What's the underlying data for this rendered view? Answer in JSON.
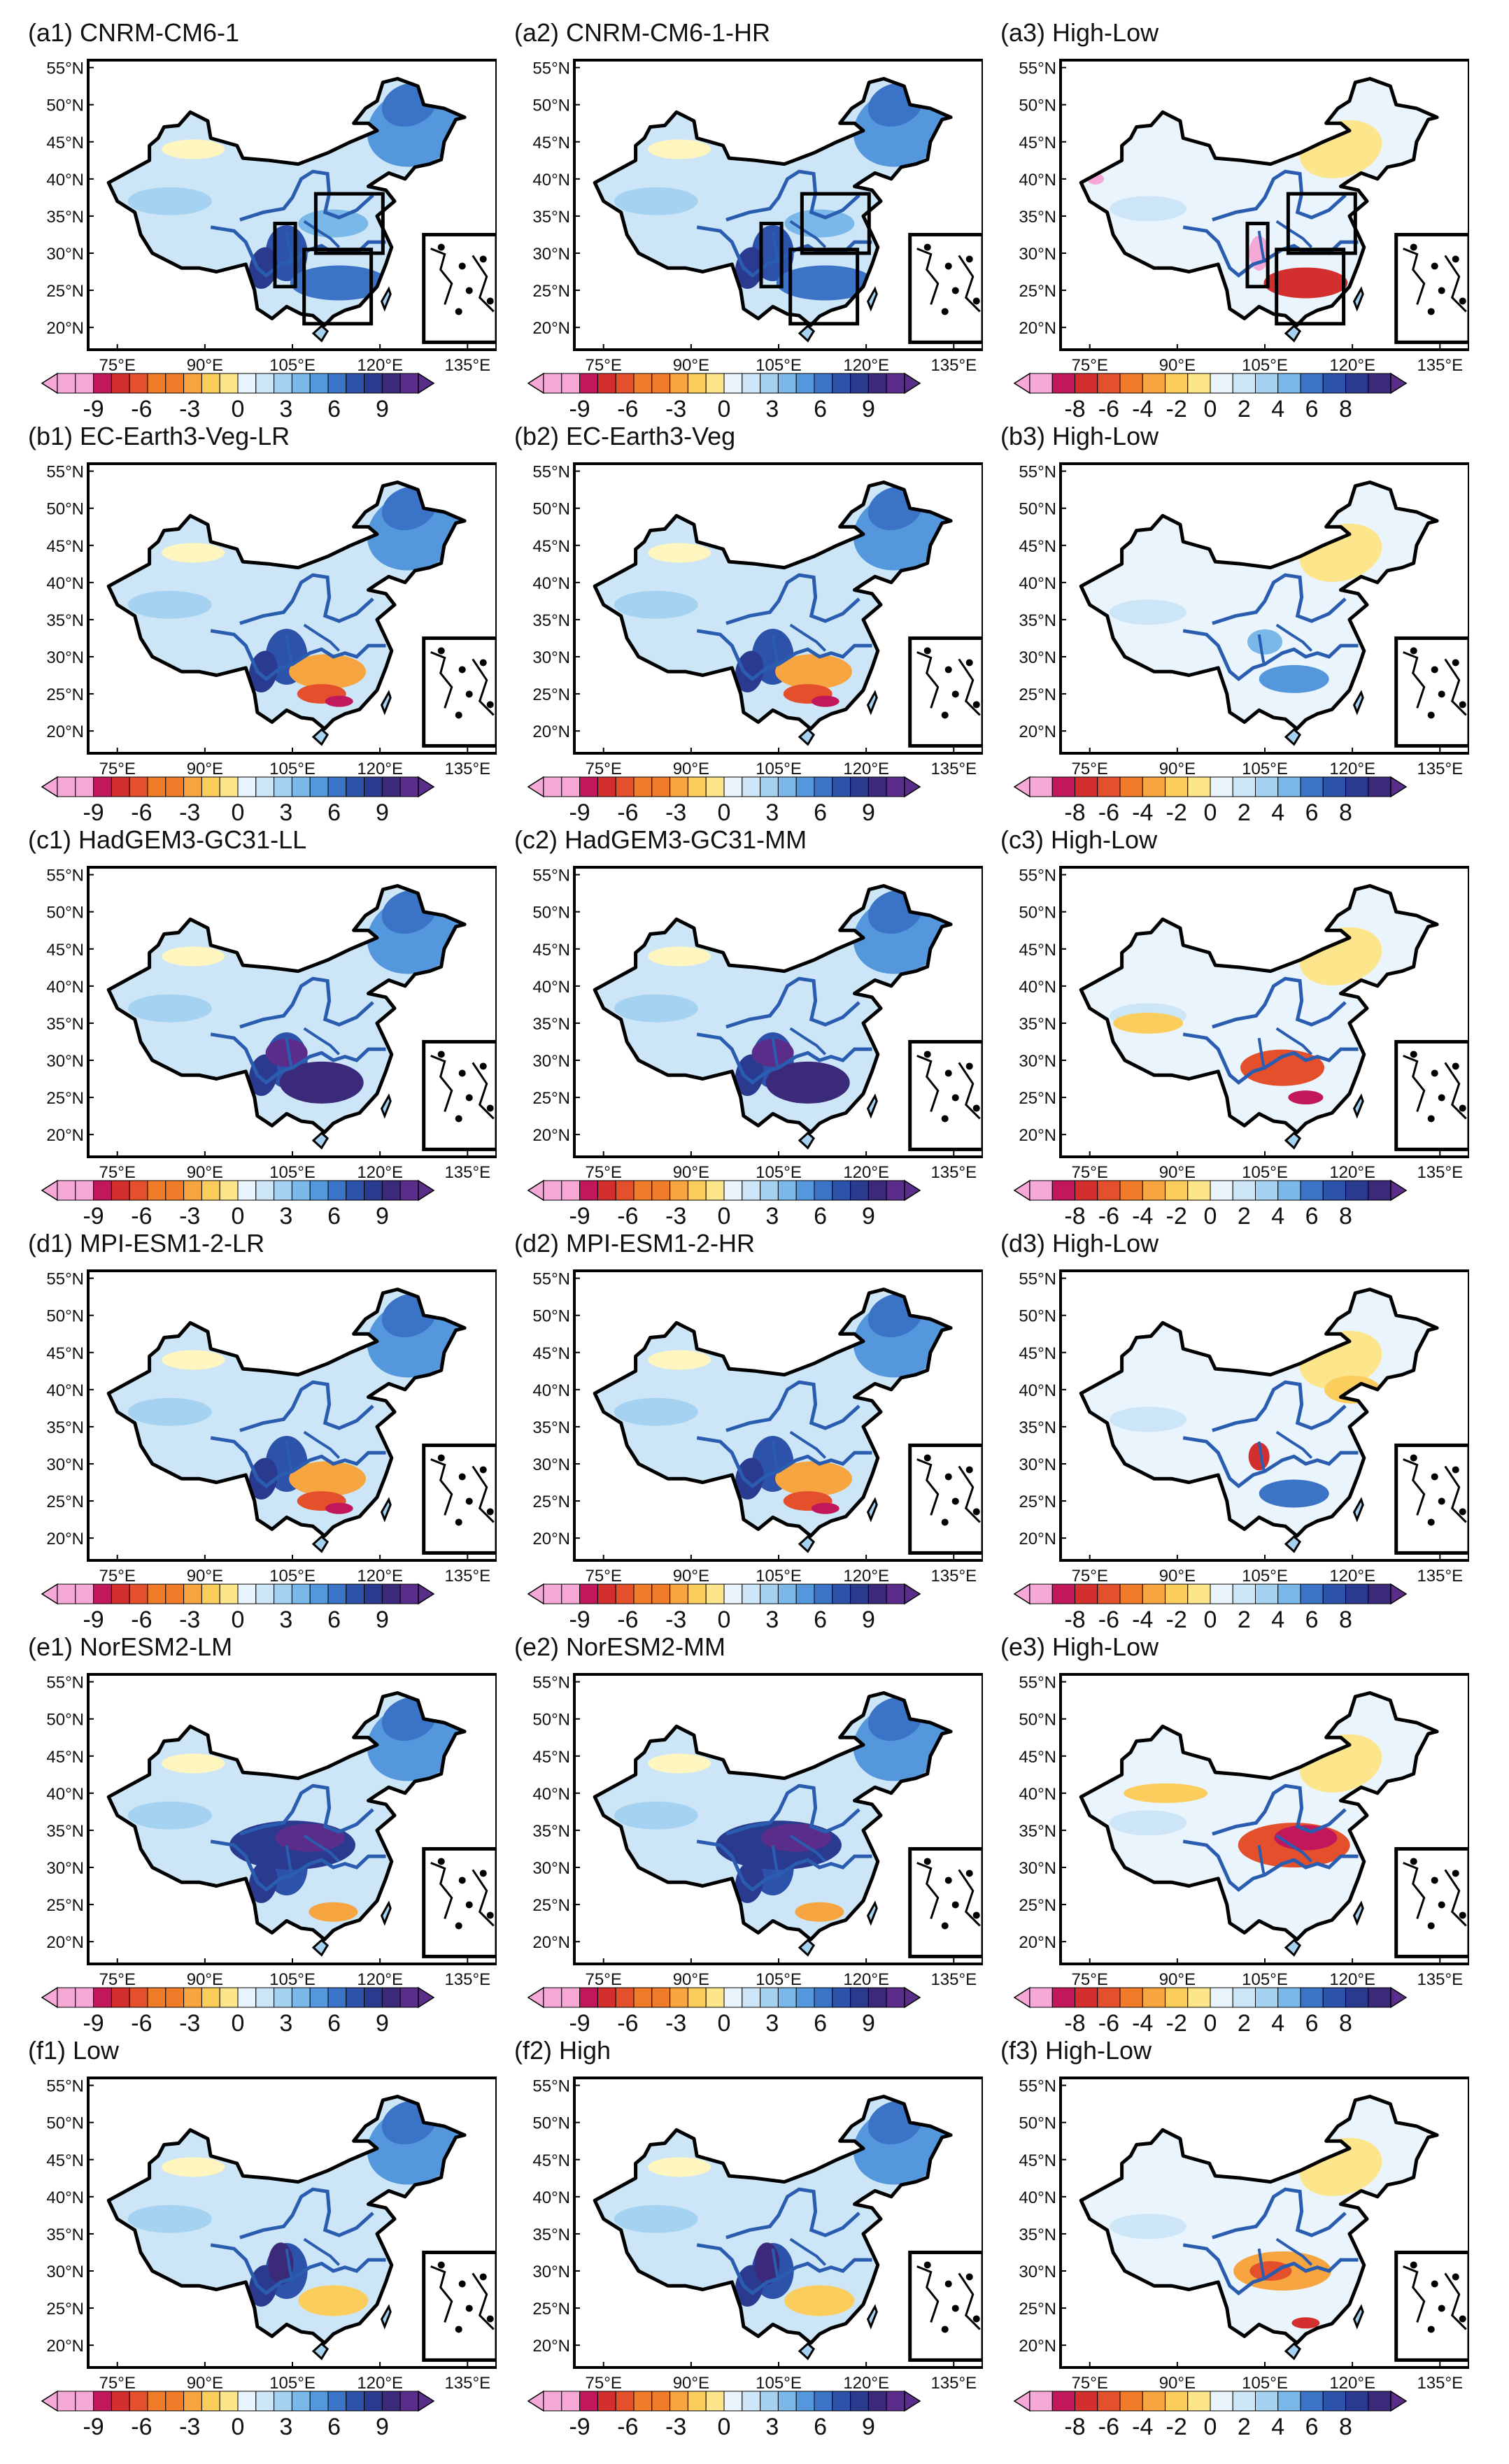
{
  "figure": {
    "lat_labels": [
      "55°N",
      "50°N",
      "45°N",
      "40°N",
      "35°N",
      "30°N",
      "25°N",
      "20°N"
    ],
    "lon_labels": [
      "75°E",
      "90°E",
      "105°E",
      "120°E",
      "135°E"
    ],
    "colorbar_standard": {
      "ticks": [
        "-9",
        "-6",
        "-3",
        "0",
        "3",
        "6",
        "9"
      ],
      "n_bins": 20
    },
    "colorbar_diff": {
      "ticks": [
        "-8",
        "-6",
        "-4",
        "-2",
        "0",
        "2",
        "4",
        "6",
        "8"
      ],
      "n_bins": 16
    },
    "palette_neg": [
      "#f6a9d6",
      "#c2185b",
      "#d32f2f",
      "#e4502c",
      "#f07c2a",
      "#f7a540",
      "#fbcd5c",
      "#fde58c",
      "#fff5bf"
    ],
    "palette_pos": [
      "#eaf4fc",
      "#cde6f7",
      "#a6d2f1",
      "#7ab8e9",
      "#5497dc",
      "#3b73c6",
      "#2d52aa",
      "#2a3a8f",
      "#3b2a7a",
      "#5a2d8a"
    ],
    "rows": [
      {
        "panels": [
          {
            "title": "(a1) CNRM-CM6-1",
            "type": "standard",
            "boxes": true
          },
          {
            "title": "(a2) CNRM-CM6-1-HR",
            "type": "standard",
            "boxes": true
          },
          {
            "title": "(a3) High-Low",
            "type": "diff",
            "boxes": true
          }
        ]
      },
      {
        "panels": [
          {
            "title": "(b1) EC-Earth3-Veg-LR",
            "type": "standard",
            "boxes": false
          },
          {
            "title": "(b2) EC-Earth3-Veg",
            "type": "standard",
            "boxes": false
          },
          {
            "title": "(b3) High-Low",
            "type": "diff",
            "boxes": false
          }
        ]
      },
      {
        "panels": [
          {
            "title": "(c1) HadGEM3-GC31-LL",
            "type": "standard",
            "boxes": false
          },
          {
            "title": "(c2) HadGEM3-GC31-MM",
            "type": "standard",
            "boxes": false
          },
          {
            "title": "(c3) High-Low",
            "type": "diff",
            "boxes": false
          }
        ]
      },
      {
        "panels": [
          {
            "title": "(d1) MPI-ESM1-2-LR",
            "type": "standard",
            "boxes": false
          },
          {
            "title": "(d2) MPI-ESM1-2-HR",
            "type": "standard",
            "boxes": false
          },
          {
            "title": "(d3) High-Low",
            "type": "diff",
            "boxes": false
          }
        ]
      },
      {
        "panels": [
          {
            "title": "(e1) NorESM2-LM",
            "type": "standard",
            "boxes": false
          },
          {
            "title": "(e2) NorESM2-MM",
            "type": "standard",
            "boxes": false
          },
          {
            "title": "(e3) High-Low",
            "type": "diff",
            "boxes": false
          }
        ]
      },
      {
        "panels": [
          {
            "title": "(f1) Low",
            "type": "standard",
            "boxes": false
          },
          {
            "title": "(f2) High",
            "type": "standard",
            "boxes": false
          },
          {
            "title": "(f3) High-Low",
            "type": "diff",
            "boxes": false
          }
        ]
      }
    ]
  }
}
